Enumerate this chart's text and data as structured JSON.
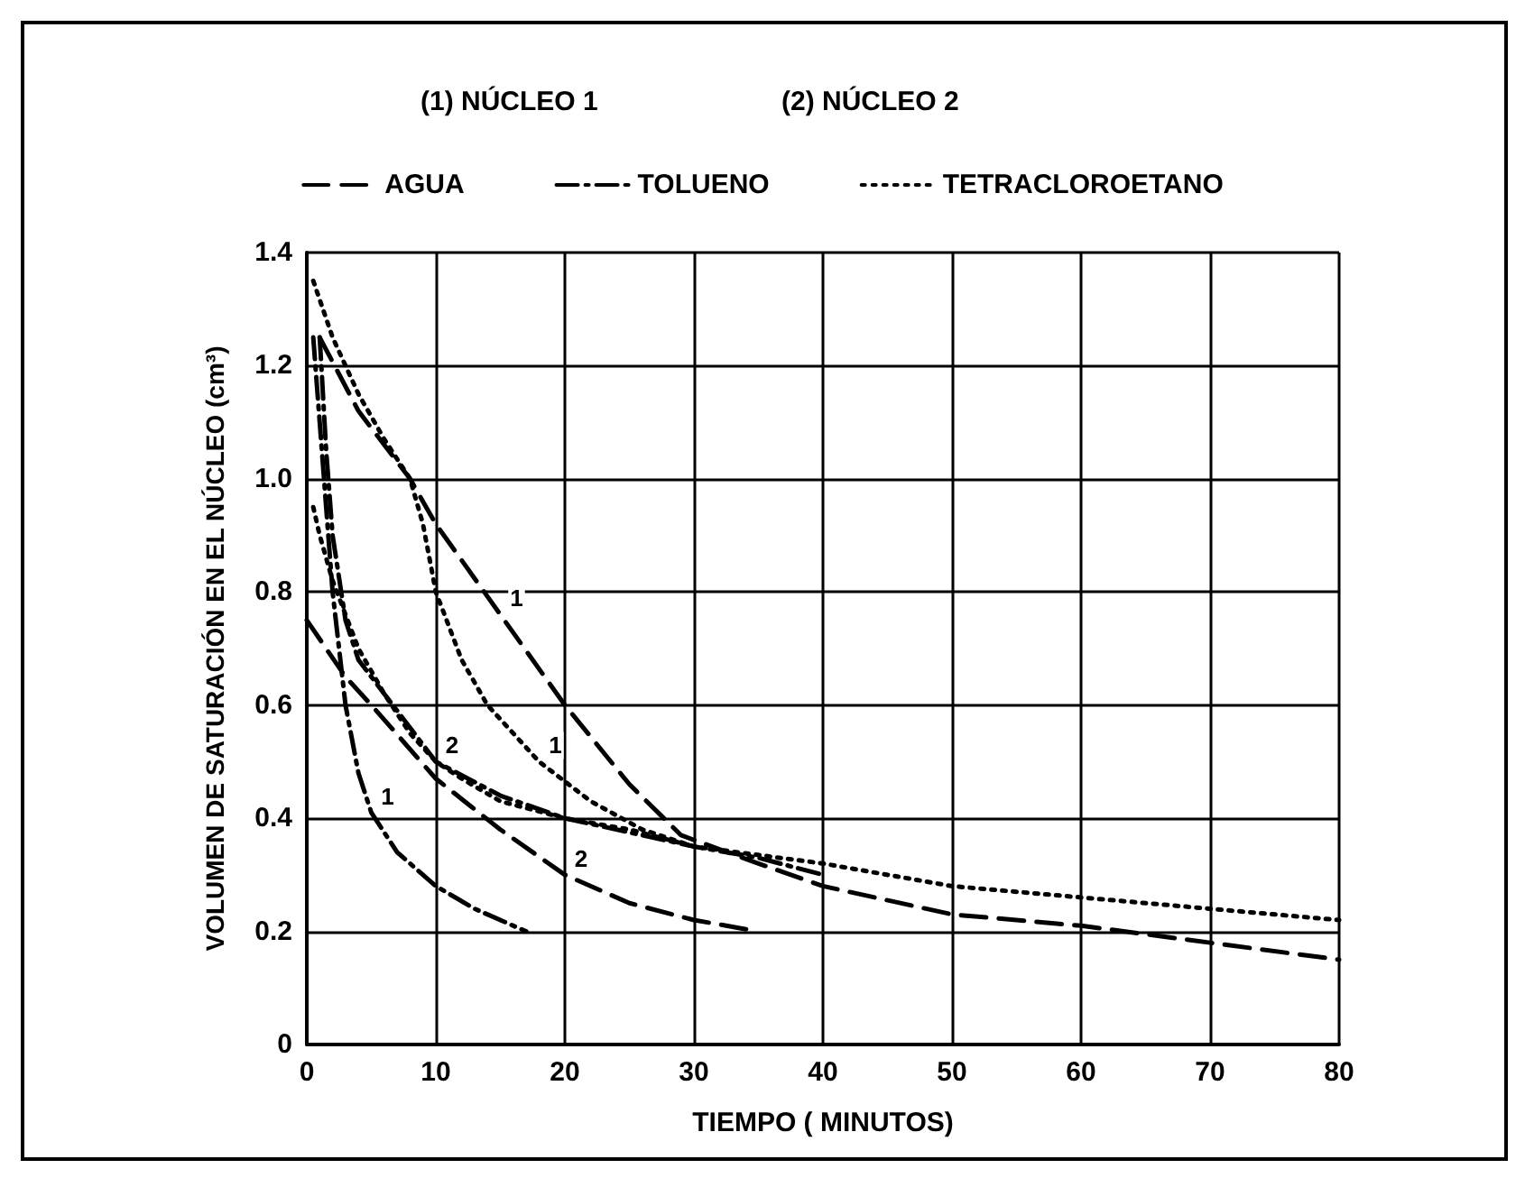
{
  "chart_data": {
    "type": "line",
    "xlabel": "TIEMPO ( MINUTOS)",
    "ylabel": "VOLUMEN DE SATURACIÓN EN EL NÚCLEO (cm³)",
    "annotations": [
      "(1) NÚCLEO 1",
      "(2) NÚCLEO 2",
      {
        "text": "1",
        "x": 15,
        "y": 0.76
      },
      {
        "text": "1",
        "x": 18,
        "y": 0.5
      },
      {
        "text": "2",
        "x": 10,
        "y": 0.5
      },
      {
        "text": "2",
        "x": 20,
        "y": 0.3
      },
      {
        "text": "1",
        "x": 5,
        "y": 0.41
      }
    ],
    "series": [
      {
        "name": "AGUA",
        "color": "#000000",
        "line_style": "dashed",
        "x": [
          1,
          4,
          8,
          10,
          15,
          20,
          25,
          29,
          35,
          40,
          50,
          60,
          70,
          80
        ],
        "values": [
          1.25,
          1.12,
          1.0,
          0.92,
          0.76,
          0.6,
          0.46,
          0.37,
          0.32,
          0.28,
          0.23,
          0.21,
          0.18,
          0.15
        ]
      },
      {
        "color": "#000000",
        "line_style": "dashed",
        "x": [
          0,
          3,
          5,
          10,
          15,
          20,
          25,
          30,
          35
        ],
        "values": [
          0.75,
          0.65,
          0.6,
          0.47,
          0.38,
          0.3,
          0.25,
          0.22,
          0.2
        ]
      },
      {
        "name": "TOLUENO",
        "color": "#000000",
        "line_style": "dashdot",
        "x": [
          0.5,
          1,
          1.5,
          2,
          3,
          4,
          5,
          7,
          10,
          13,
          17
        ],
        "values": [
          1.25,
          1.1,
          0.95,
          0.8,
          0.6,
          0.48,
          0.41,
          0.34,
          0.28,
          0.24,
          0.2
        ]
      },
      {
        "color": "#000000",
        "line_style": "dashdot",
        "x": [
          1,
          1.5,
          2,
          3,
          4,
          6,
          10,
          15,
          20,
          30,
          35,
          40
        ],
        "values": [
          1.25,
          1.05,
          0.9,
          0.75,
          0.68,
          0.62,
          0.5,
          0.44,
          0.4,
          0.35,
          0.33,
          0.3
        ]
      },
      {
        "name": "TETRACLOROETANO",
        "color": "#000000",
        "line_style": "dotted",
        "x": [
          0.5,
          2,
          4,
          6,
          8,
          9,
          10,
          12,
          14,
          18,
          22,
          26,
          30,
          40,
          50,
          60,
          70,
          80
        ],
        "values": [
          1.35,
          1.25,
          1.15,
          1.07,
          1.0,
          0.92,
          0.8,
          0.68,
          0.6,
          0.5,
          0.43,
          0.38,
          0.35,
          0.32,
          0.28,
          0.26,
          0.24,
          0.22
        ]
      },
      {
        "color": "#000000",
        "line_style": "dotted",
        "x": [
          0.5,
          1,
          2,
          4,
          6,
          8,
          10,
          12,
          15,
          20,
          25,
          30
        ],
        "values": [
          0.95,
          0.9,
          0.82,
          0.7,
          0.62,
          0.55,
          0.5,
          0.47,
          0.43,
          0.4,
          0.38,
          0.35
        ]
      }
    ],
    "xlim": [
      0,
      80
    ],
    "xticks": [
      0,
      10,
      20,
      30,
      40,
      50,
      60,
      70,
      80
    ],
    "ylim": [
      0,
      1.4
    ],
    "yticks": [
      0,
      0.2,
      0.4,
      0.6,
      0.8,
      {
        "value": 1,
        "label": "1.0"
      },
      1.2,
      1.4
    ],
    "grid": true,
    "legend": "top",
    "marker": "none"
  }
}
